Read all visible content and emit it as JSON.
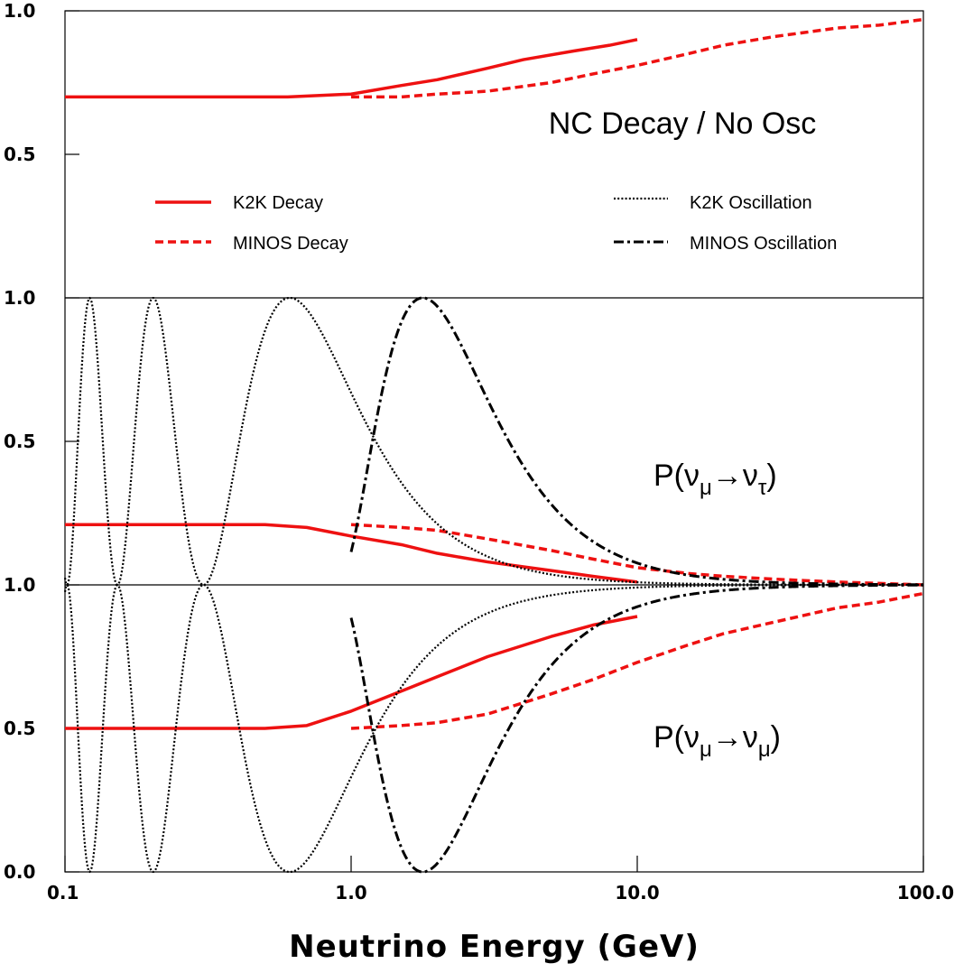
{
  "chart_data": {
    "type": "line",
    "x_axis": {
      "title": "Neutrino Energy (GeV)",
      "scale": "log",
      "range": [
        0.1,
        100.0
      ],
      "ticks": [
        {
          "value": 0.1,
          "label": "0.1"
        },
        {
          "value": 1.0,
          "label": "1.0"
        },
        {
          "value": 10.0,
          "label": "10.0"
        },
        {
          "value": 100.0,
          "label": "100.0"
        }
      ]
    },
    "panels": [
      {
        "label": "NC Decay / No Osc",
        "yrange": [
          0.0,
          1.0
        ],
        "ticks": [
          {
            "value": 1.0,
            "label": "1.0"
          },
          {
            "value": 0.5,
            "label": "0.5"
          }
        ],
        "series": [
          {
            "name": "K2K Decay",
            "style": "solid",
            "color": "#ee1111",
            "x": [
              0.1,
              0.3,
              0.6,
              1.0,
              1.5,
              2.0,
              3.0,
              4.0,
              6.0,
              8.0,
              10.0
            ],
            "y": [
              0.7,
              0.7,
              0.7,
              0.71,
              0.74,
              0.76,
              0.8,
              0.83,
              0.86,
              0.88,
              0.9
            ]
          },
          {
            "name": "MINOS Decay",
            "style": "dashed",
            "color": "#ee1111",
            "x": [
              1.0,
              1.5,
              2.0,
              3.0,
              5.0,
              7.0,
              10.0,
              15.0,
              20.0,
              30.0,
              50.0,
              70.0,
              100.0
            ],
            "y": [
              0.7,
              0.7,
              0.71,
              0.72,
              0.75,
              0.78,
              0.81,
              0.85,
              0.88,
              0.91,
              0.94,
              0.95,
              0.97
            ]
          }
        ]
      },
      {
        "label_main": "P(ν",
        "label_sub1": "μ",
        "label_arrow": "→ν",
        "label_sub2": "τ",
        "label_end": ")",
        "yrange": [
          0.0,
          1.0
        ],
        "ticks": [
          {
            "value": 1.0,
            "label": "1.0"
          },
          {
            "value": 0.5,
            "label": "0.5"
          }
        ],
        "series": [
          {
            "name": "K2K Decay",
            "style": "solid",
            "color": "#ee1111",
            "x": [
              0.1,
              0.3,
              0.5,
              0.7,
              1.0,
              1.5,
              2.0,
              3.0,
              5.0,
              7.0,
              10.0
            ],
            "y": [
              0.21,
              0.21,
              0.21,
              0.2,
              0.17,
              0.14,
              0.11,
              0.08,
              0.05,
              0.03,
              0.01
            ]
          },
          {
            "name": "MINOS Decay",
            "style": "dashed",
            "color": "#ee1111",
            "x": [
              1.0,
              1.5,
              2.0,
              3.0,
              5.0,
              7.0,
              10.0,
              15.0,
              20.0,
              30.0,
              50.0,
              100.0
            ],
            "y": [
              0.21,
              0.2,
              0.19,
              0.16,
              0.12,
              0.09,
              0.06,
              0.04,
              0.03,
              0.02,
              0.01,
              0.0
            ]
          },
          {
            "name": "K2K Oscillation",
            "style": "dotted",
            "color": "#000000",
            "model": "osc",
            "E0": 0.61,
            "xmin": 0.1,
            "xmax": 100.0,
            "invert": false
          },
          {
            "name": "MINOS Oscillation",
            "style": "dashdot",
            "color": "#000000",
            "model": "osc",
            "E0": 1.78,
            "xmin": 1.0,
            "xmax": 100.0,
            "invert": false
          }
        ]
      },
      {
        "label_main": "P(ν",
        "label_sub1": "μ",
        "label_arrow": "→ν",
        "label_sub2": "μ",
        "label_end": ")",
        "yrange": [
          0.0,
          1.0
        ],
        "ticks": [
          {
            "value": 1.0,
            "label": "1.0"
          },
          {
            "value": 0.5,
            "label": "0.5"
          },
          {
            "value": 0.0,
            "label": "0.0"
          }
        ],
        "series": [
          {
            "name": "K2K Decay",
            "style": "solid",
            "color": "#ee1111",
            "x": [
              0.1,
              0.3,
              0.5,
              0.7,
              1.0,
              1.5,
              2.0,
              3.0,
              5.0,
              7.0,
              10.0
            ],
            "y": [
              0.5,
              0.5,
              0.5,
              0.51,
              0.56,
              0.63,
              0.68,
              0.75,
              0.82,
              0.86,
              0.89
            ]
          },
          {
            "name": "MINOS Decay",
            "style": "dashed",
            "color": "#ee1111",
            "x": [
              1.0,
              1.5,
              2.0,
              3.0,
              5.0,
              7.0,
              10.0,
              15.0,
              20.0,
              30.0,
              50.0,
              70.0,
              100.0
            ],
            "y": [
              0.5,
              0.51,
              0.52,
              0.55,
              0.62,
              0.67,
              0.73,
              0.79,
              0.83,
              0.87,
              0.92,
              0.94,
              0.97
            ]
          },
          {
            "name": "K2K Oscillation",
            "style": "dotted",
            "color": "#000000",
            "model": "osc",
            "E0": 0.61,
            "xmin": 0.1,
            "xmax": 100.0,
            "invert": true
          },
          {
            "name": "MINOS Oscillation",
            "style": "dashdot",
            "color": "#000000",
            "model": "osc",
            "E0": 1.78,
            "xmin": 1.0,
            "xmax": 100.0,
            "invert": true
          }
        ]
      }
    ],
    "legend": {
      "placement": "top panel, middle",
      "entries": [
        {
          "label": "K2K  Decay",
          "style": "solid",
          "color": "#ee1111"
        },
        {
          "label": "MINOS  Decay",
          "style": "dashed",
          "color": "#ee1111"
        },
        {
          "label": "K2K  Oscillation",
          "style": "dotted",
          "color": "#000000"
        },
        {
          "label": "MINOS  Oscillation",
          "style": "dashdot",
          "color": "#000000"
        }
      ]
    },
    "grid": false
  }
}
